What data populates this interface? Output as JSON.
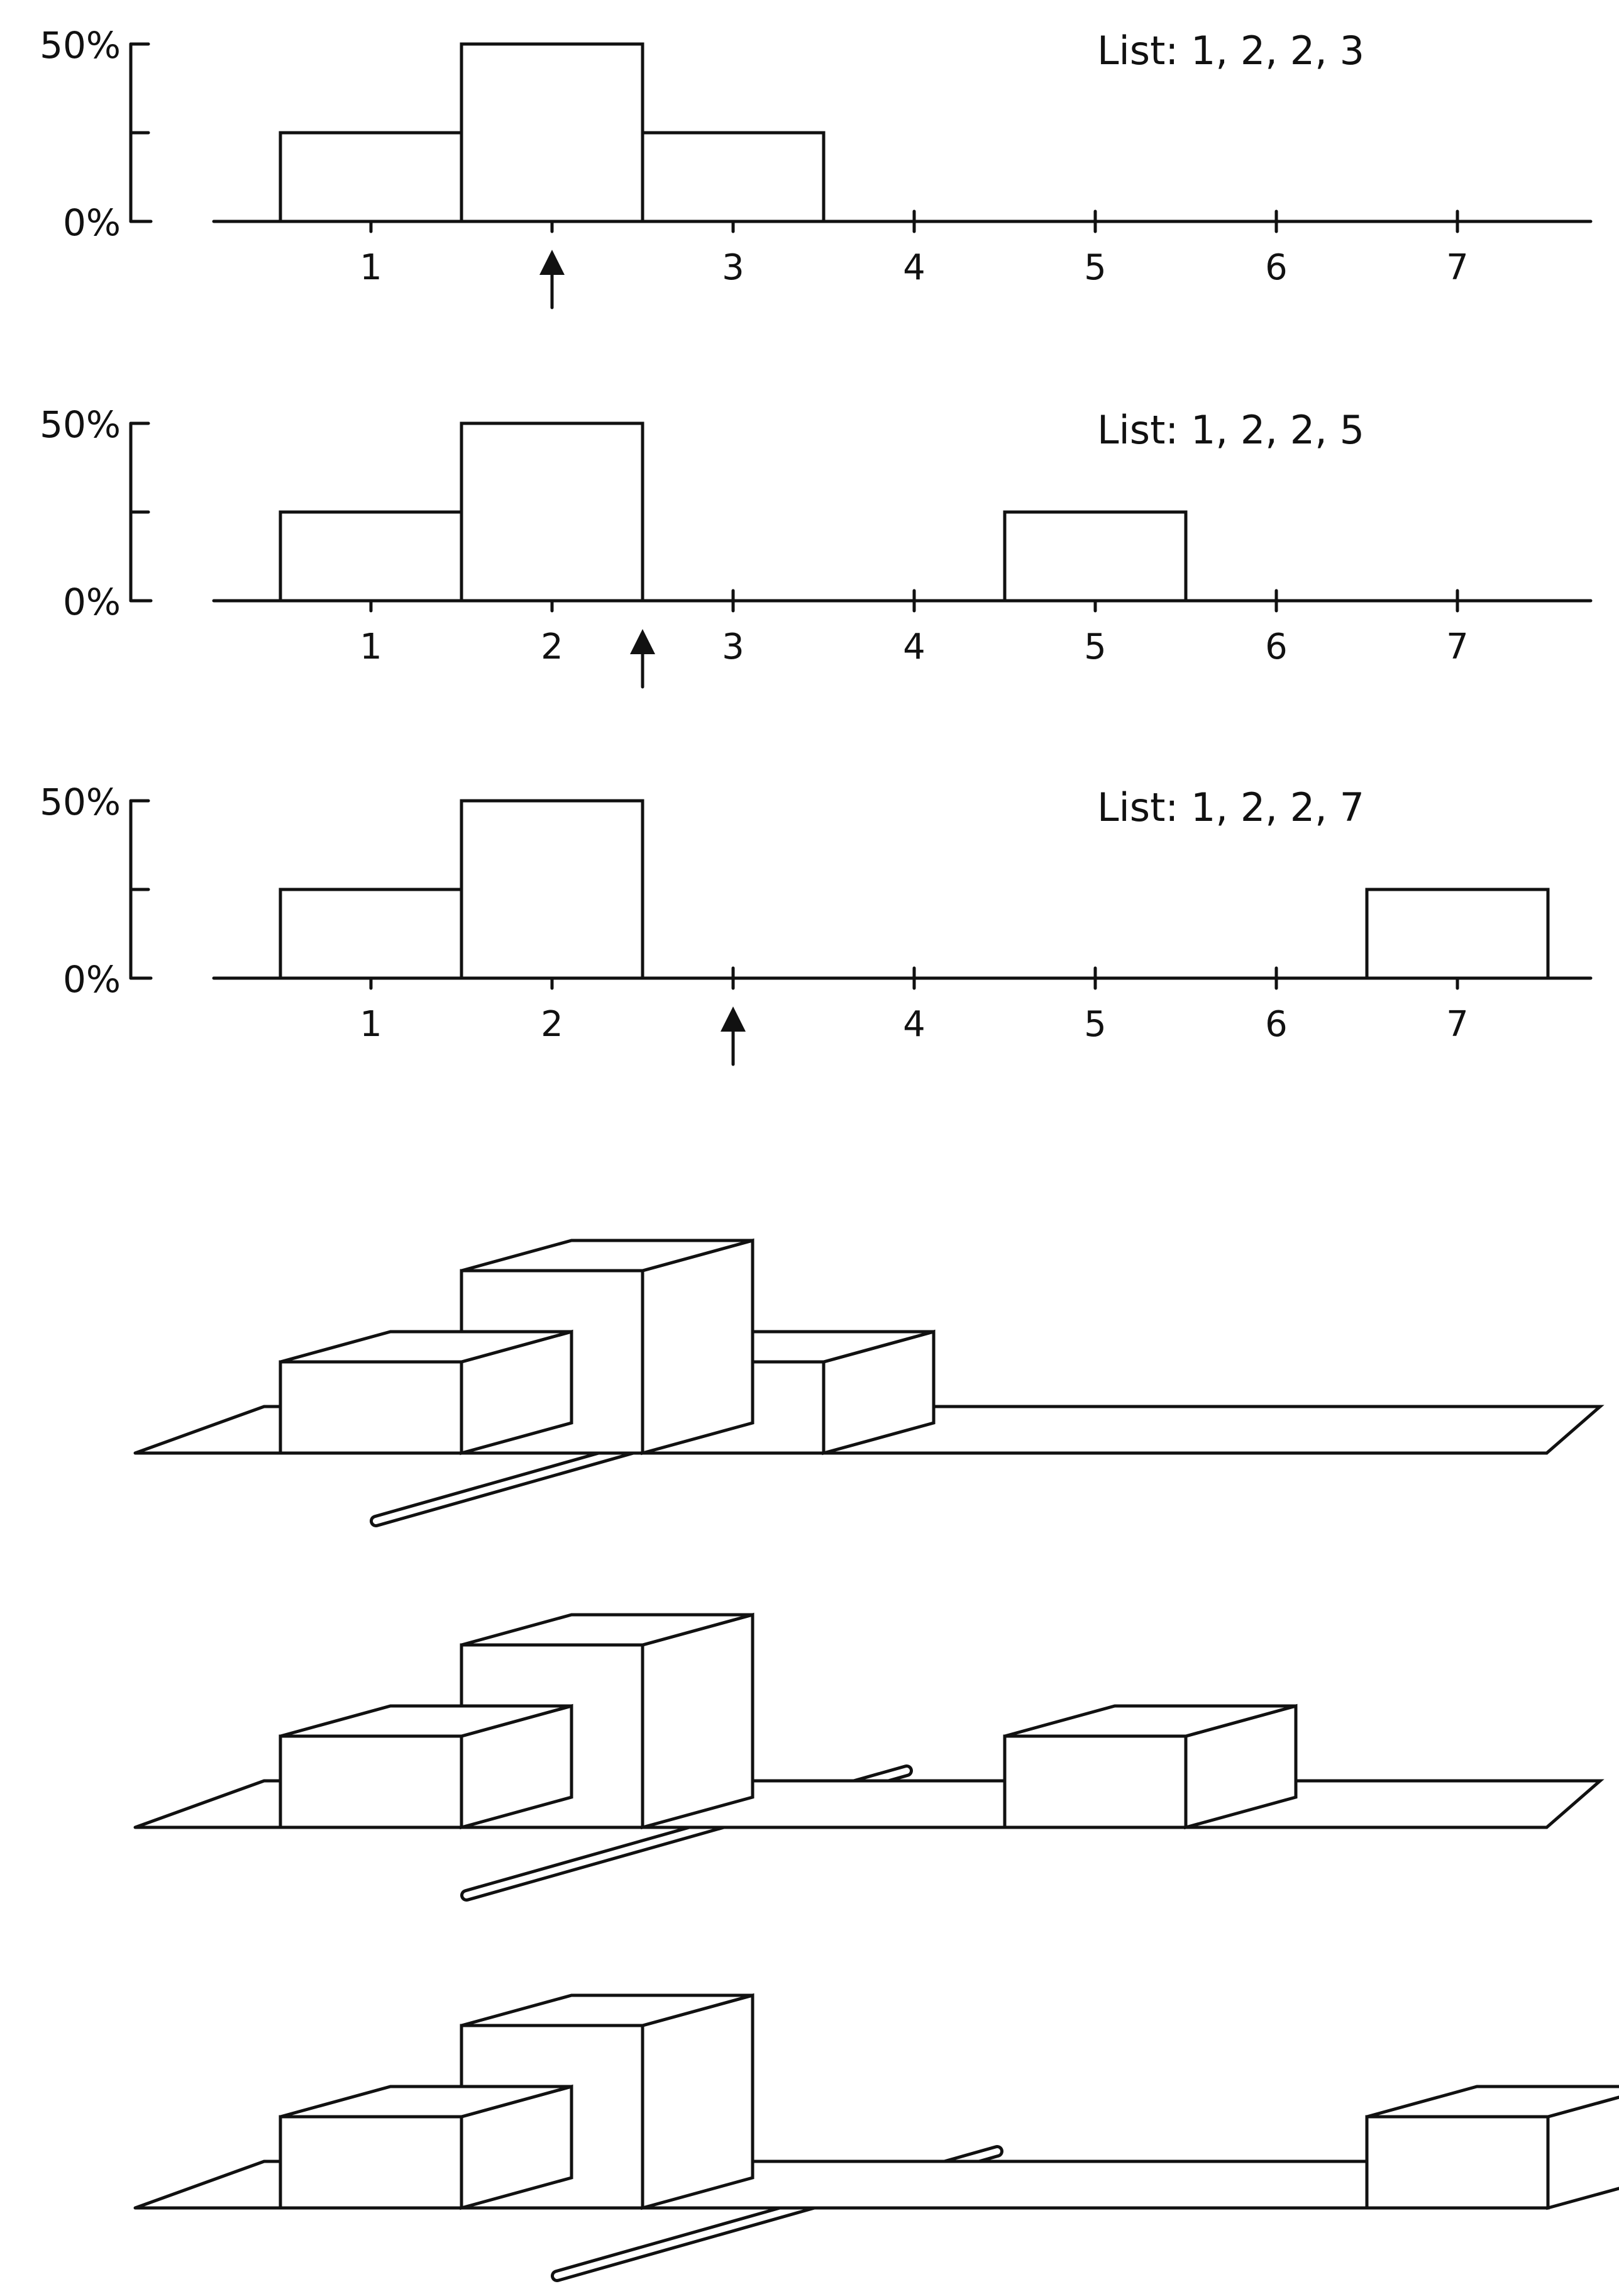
{
  "colors": {
    "ink": "#111111",
    "paper": "#ffffff"
  },
  "chart_data": [
    {
      "type": "bar",
      "categories": [
        "1",
        "2",
        "3",
        "4",
        "5",
        "6",
        "7"
      ],
      "values": [
        25,
        50,
        25,
        0,
        0,
        0,
        0
      ],
      "highlighted_category": "3",
      "balance_point": 2,
      "list_label": "List: 1, 2, 2, 3",
      "y_ticks": [
        "50%",
        "0%"
      ],
      "ylim": [
        0,
        50
      ],
      "grid": false
    },
    {
      "type": "bar",
      "categories": [
        "1",
        "2",
        "3",
        "4",
        "5",
        "6",
        "7"
      ],
      "values": [
        25,
        50,
        0,
        0,
        25,
        0,
        0
      ],
      "highlighted_category": "5",
      "balance_point": 2.5,
      "list_label": "List: 1, 2, 2, 5",
      "y_ticks": [
        "50%",
        "0%"
      ],
      "ylim": [
        0,
        50
      ],
      "grid": false
    },
    {
      "type": "bar",
      "categories": [
        "1",
        "2",
        "3",
        "4",
        "5",
        "6",
        "7"
      ],
      "values": [
        25,
        50,
        0,
        0,
        0,
        0,
        25
      ],
      "highlighted_category": "7",
      "balance_point": 3,
      "list_label": "List: 1, 2, 2, 7",
      "y_ticks": [
        "50%",
        "0%"
      ],
      "ylim": [
        0,
        50
      ],
      "grid": false
    }
  ]
}
